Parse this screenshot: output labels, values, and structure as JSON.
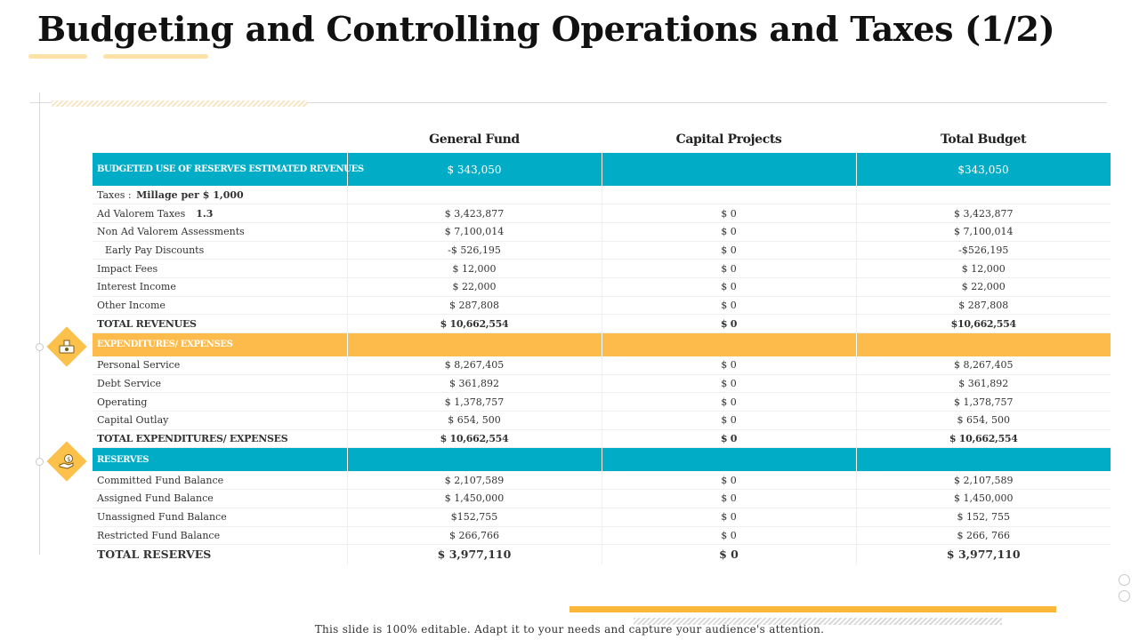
{
  "title": "Budgeting and Controlling Operations and Taxes (1/2)",
  "columns": [
    "General Fund",
    "Capital Projects",
    "Total Budget"
  ],
  "reserves_estimated": {
    "label": "BUDGETED USE OF RESERVES ESTIMATED REVENUES",
    "general": "$ 343,050",
    "capital": "",
    "total": "$343,050"
  },
  "taxes_row": {
    "label": "Taxes :",
    "bold": "Millage per $ 1,000"
  },
  "ad_valorem": {
    "label": "Ad Valorem Taxes",
    "rate": "1.3",
    "general": "$ 3,423,877",
    "capital": "$ 0",
    "total": "$ 3,423,877"
  },
  "revenues": [
    {
      "label": "Non Ad Valorem Assessments",
      "general": "$ 7,100,014",
      "capital": "$ 0",
      "total": "$ 7,100,014",
      "indent": false
    },
    {
      "label": "Early Pay Discounts",
      "general": "-$ 526,195",
      "capital": "$ 0",
      "total": "-$526,195",
      "indent": true
    },
    {
      "label": "Impact Fees",
      "general": "$ 12,000",
      "capital": "$ 0",
      "total": "$ 12,000",
      "indent": false
    },
    {
      "label": "Interest Income",
      "general": "$ 22,000",
      "capital": "$ 0",
      "total": "$ 22,000",
      "indent": false
    },
    {
      "label": "Other Income",
      "general": "$ 287,808",
      "capital": "$ 0",
      "total": "$ 287,808",
      "indent": false
    }
  ],
  "total_revenues": {
    "label": "TOTAL REVENUES",
    "general": "$ 10,662,554",
    "capital": "$ 0",
    "total": "$10,662,554"
  },
  "expenditures_header": {
    "label": "EXPENDITURES/ EXPENSES"
  },
  "expenditures": [
    {
      "label": "Personal Service",
      "general": "$ 8,267,405",
      "capital": "$ 0",
      "total": "$ 8,267,405"
    },
    {
      "label": "Debt Service",
      "general": "$ 361,892",
      "capital": "$ 0",
      "total": "$ 361,892"
    },
    {
      "label": "Operating",
      "general": "$ 1,378,757",
      "capital": "$ 0",
      "total": "$ 1,378,757"
    },
    {
      "label": "Capital Outlay",
      "general": "$ 654, 500",
      "capital": "$ 0",
      "total": "$ 654, 500"
    }
  ],
  "total_expenditures": {
    "label": "TOTAL EXPENDITURES/ EXPENSES",
    "general": "$ 10,662,554",
    "capital": "$ 0",
    "total": "$ 10,662,554"
  },
  "reserves_header": {
    "label": "RESERVES"
  },
  "reserves": [
    {
      "label": "Committed Fund Balance",
      "general": "$ 2,107,589",
      "capital": "$ 0",
      "total": "$ 2,107,589"
    },
    {
      "label": "Assigned Fund Balance",
      "general": "$ 1,450,000",
      "capital": "$ 0",
      "total": "$ 1,450,000"
    },
    {
      "label": "Unassigned Fund Balance",
      "general": "$152,755",
      "capital": "$ 0",
      "total": "$ 152, 755"
    },
    {
      "label": "Restricted Fund Balance",
      "general": "$ 266,766",
      "capital": "$ 0",
      "total": "$ 266, 766"
    }
  ],
  "total_reserves": {
    "label": "TOTAL RESERVES",
    "general": "$ 3,977,110",
    "capital": "$ 0",
    "total": "$ 3,977,110"
  },
  "icons": {
    "revenue": "money-bill-icon",
    "reserves": "coin-hand-icon"
  },
  "colors": {
    "teal": "#01adc6",
    "orange": "#fdbb4b",
    "accent_bar": "#fbb838"
  },
  "footer": "This slide is 100% editable.  Adapt it to your needs and capture your audience's attention."
}
